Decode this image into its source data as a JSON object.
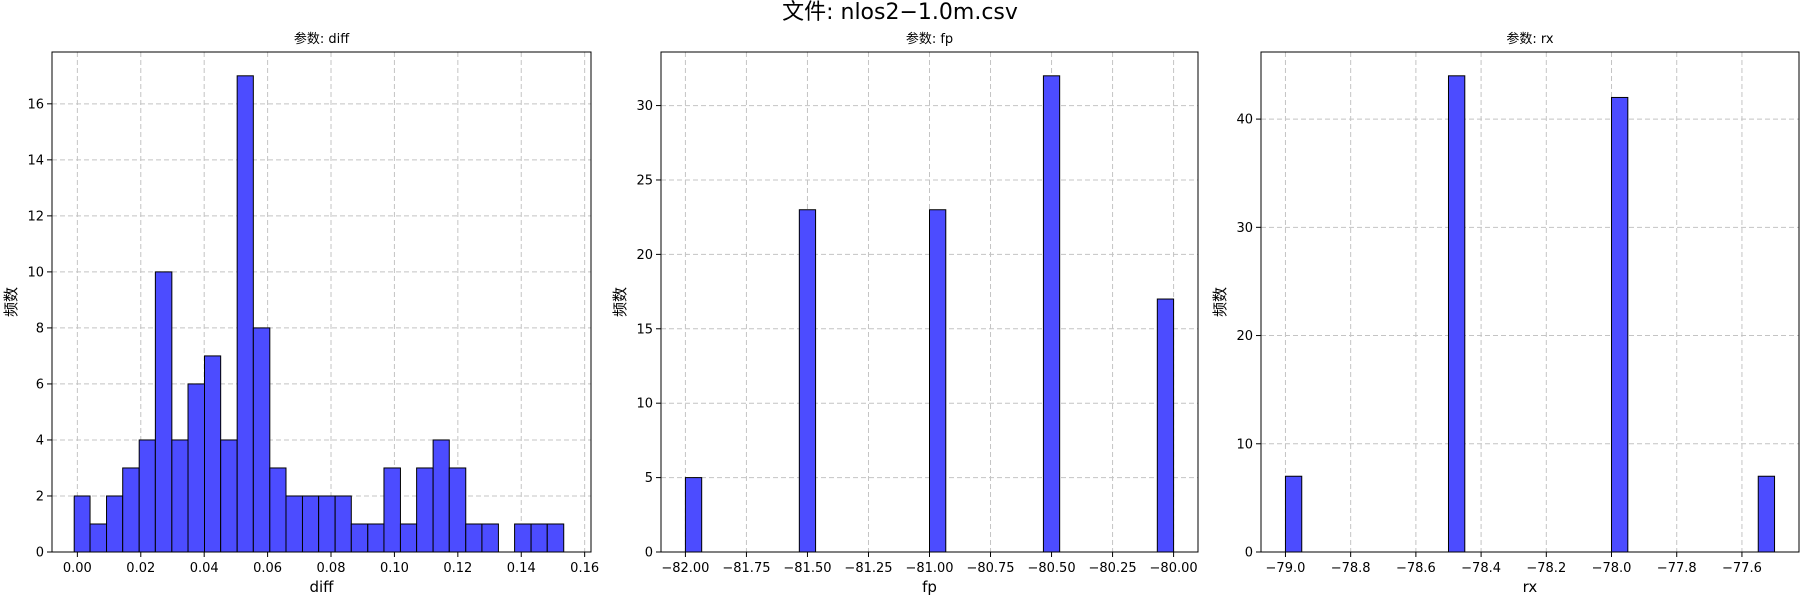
{
  "figure": {
    "title": "文件: nlos2−1.0m.csv"
  },
  "chart_data": [
    {
      "type": "bar",
      "title": "参数: diff",
      "xlabel": "diff",
      "ylabel": "频数",
      "xlim": [
        -0.008,
        0.162
      ],
      "ylim": [
        0,
        17.85
      ],
      "xticks": [
        0.0,
        0.02,
        0.04,
        0.06,
        0.08,
        0.1,
        0.12,
        0.14,
        0.16
      ],
      "xtick_labels": [
        "0.00",
        "0.02",
        "0.04",
        "0.06",
        "0.08",
        "0.10",
        "0.12",
        "0.14",
        "0.16"
      ],
      "yticks": [
        0,
        2,
        4,
        6,
        8,
        10,
        12,
        14,
        16
      ],
      "ytick_labels": [
        "0",
        "2",
        "4",
        "6",
        "8",
        "10",
        "12",
        "14",
        "16"
      ],
      "bin_edges": [
        -0.001,
        0.004,
        0.0092,
        0.0143,
        0.0195,
        0.0246,
        0.0298,
        0.0349,
        0.0401,
        0.0452,
        0.0504,
        0.0555,
        0.0607,
        0.0658,
        0.071,
        0.0761,
        0.0813,
        0.0864,
        0.0916,
        0.0967,
        0.1019,
        0.107,
        0.1122,
        0.1173,
        0.1225,
        0.1276,
        0.1328,
        0.1379,
        0.1431,
        0.1482,
        0.1534
      ],
      "values": [
        2,
        1,
        2,
        3,
        4,
        10,
        4,
        6,
        7,
        4,
        17,
        8,
        3,
        2,
        2,
        2,
        2,
        1,
        1,
        3,
        1,
        3,
        4,
        3,
        1,
        1,
        0,
        1,
        1,
        1
      ],
      "grid": true,
      "color": "#4c4cff",
      "edge_color": "#000000"
    },
    {
      "type": "bar",
      "title": "参数: fp",
      "xlabel": "fp",
      "ylabel": "频数",
      "xlim": [
        -82.1,
        -79.9
      ],
      "ylim": [
        0,
        33.6
      ],
      "xticks": [
        -82.0,
        -81.75,
        -81.5,
        -81.25,
        -81.0,
        -80.75,
        -80.5,
        -80.25,
        -80.0
      ],
      "xtick_labels": [
        "−82.00",
        "−81.75",
        "−81.50",
        "−81.25",
        "−81.00",
        "−80.75",
        "−80.50",
        "−80.25",
        "−80.00"
      ],
      "yticks": [
        0,
        5,
        10,
        15,
        20,
        25,
        30
      ],
      "ytick_labels": [
        "0",
        "5",
        "10",
        "15",
        "20",
        "25",
        "30"
      ],
      "bin_edges": [
        -82.0,
        -81.9333,
        -81.8667,
        -81.8,
        -81.7333,
        -81.6667,
        -81.6,
        -81.5333,
        -81.4667,
        -81.4,
        -81.3333,
        -81.2667,
        -81.2,
        -81.1333,
        -81.0667,
        -81.0,
        -80.9333,
        -80.8667,
        -80.8,
        -80.7333,
        -80.6667,
        -80.6,
        -80.5333,
        -80.4667,
        -80.4,
        -80.3333,
        -80.2667,
        -80.2,
        -80.1333,
        -80.0667,
        -80.0
      ],
      "values": [
        5,
        0,
        0,
        0,
        0,
        0,
        0,
        23,
        0,
        0,
        0,
        0,
        0,
        0,
        0,
        23,
        0,
        0,
        0,
        0,
        0,
        0,
        32,
        0,
        0,
        0,
        0,
        0,
        0,
        17
      ],
      "grid": true,
      "color": "#4c4cff",
      "edge_color": "#000000"
    },
    {
      "type": "bar",
      "title": "参数: rx",
      "xlabel": "rx",
      "ylabel": "频数",
      "xlim": [
        -79.075,
        -77.425
      ],
      "ylim": [
        0,
        46.2
      ],
      "xticks": [
        -79.0,
        -78.8,
        -78.6,
        -78.4,
        -78.2,
        -78.0,
        -77.8,
        -77.6
      ],
      "xtick_labels": [
        "−79.0",
        "−78.8",
        "−78.6",
        "−78.4",
        "−78.2",
        "−78.0",
        "−77.8",
        "−77.6"
      ],
      "yticks": [
        0,
        10,
        20,
        30,
        40
      ],
      "ytick_labels": [
        "0",
        "10",
        "20",
        "30",
        "40"
      ],
      "bin_edges": [
        -79.0,
        -78.95,
        -78.9,
        -78.85,
        -78.8,
        -78.75,
        -78.7,
        -78.65,
        -78.6,
        -78.55,
        -78.5,
        -78.45,
        -78.4,
        -78.35,
        -78.3,
        -78.25,
        -78.2,
        -78.15,
        -78.1,
        -78.05,
        -78.0,
        -77.95,
        -77.9,
        -77.85,
        -77.8,
        -77.75,
        -77.7,
        -77.65,
        -77.6,
        -77.55,
        -77.5
      ],
      "values": [
        7,
        0,
        0,
        0,
        0,
        0,
        0,
        0,
        0,
        0,
        44,
        0,
        0,
        0,
        0,
        0,
        0,
        0,
        0,
        0,
        42,
        0,
        0,
        0,
        0,
        0,
        0,
        0,
        0,
        7
      ],
      "grid": true,
      "color": "#4c4cff",
      "edge_color": "#000000"
    }
  ]
}
